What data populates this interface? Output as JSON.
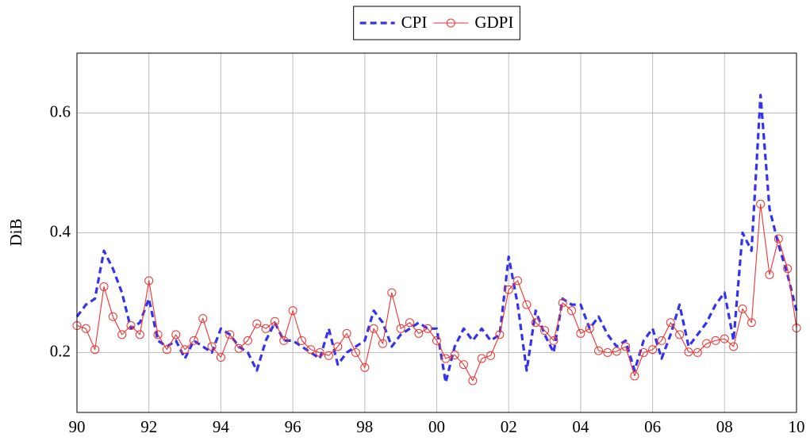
{
  "chart_data": {
    "type": "line",
    "ylabel": "DiB",
    "x": [
      1990,
      1990.25,
      1990.5,
      1990.75,
      1991,
      1991.25,
      1991.5,
      1991.75,
      1992,
      1992.25,
      1992.5,
      1992.75,
      1993,
      1993.25,
      1993.5,
      1993.75,
      1994,
      1994.25,
      1994.5,
      1994.75,
      1995,
      1995.25,
      1995.5,
      1995.75,
      1996,
      1996.25,
      1996.5,
      1996.75,
      1997,
      1997.25,
      1997.5,
      1997.75,
      1998,
      1998.25,
      1998.5,
      1998.75,
      1999,
      1999.25,
      1999.5,
      1999.75,
      2000,
      2000.25,
      2000.5,
      2000.75,
      2001,
      2001.25,
      2001.5,
      2001.75,
      2002,
      2002.25,
      2002.5,
      2002.75,
      2003,
      2003.25,
      2003.5,
      2003.75,
      2004,
      2004.25,
      2004.5,
      2004.75,
      2005,
      2005.25,
      2005.5,
      2005.75,
      2006,
      2006.25,
      2006.5,
      2006.75,
      2007,
      2007.25,
      2007.5,
      2007.75,
      2008,
      2008.25,
      2008.5,
      2008.75,
      2009,
      2009.25,
      2009.5,
      2009.75,
      2010
    ],
    "series": [
      {
        "name": "CPI",
        "color": "#3333ee",
        "dashed": true,
        "marker": false,
        "values": [
          0.26,
          0.28,
          0.29,
          0.37,
          0.34,
          0.3,
          0.24,
          0.25,
          0.29,
          0.22,
          0.21,
          0.22,
          0.19,
          0.22,
          0.21,
          0.2,
          0.24,
          0.23,
          0.21,
          0.2,
          0.17,
          0.22,
          0.25,
          0.22,
          0.22,
          0.21,
          0.2,
          0.19,
          0.24,
          0.18,
          0.2,
          0.21,
          0.22,
          0.27,
          0.25,
          0.21,
          0.23,
          0.24,
          0.25,
          0.24,
          0.24,
          0.15,
          0.21,
          0.24,
          0.22,
          0.24,
          0.22,
          0.23,
          0.36,
          0.28,
          0.17,
          0.27,
          0.23,
          0.2,
          0.29,
          0.28,
          0.28,
          0.24,
          0.26,
          0.23,
          0.21,
          0.22,
          0.17,
          0.22,
          0.24,
          0.19,
          0.23,
          0.28,
          0.21,
          0.23,
          0.25,
          0.28,
          0.3,
          0.22,
          0.4,
          0.37,
          0.63,
          0.44,
          0.38,
          0.33,
          0.27
        ]
      },
      {
        "name": "GDPI",
        "color": "#ee3333",
        "dashed": false,
        "marker": true,
        "values": [
          0.245,
          0.24,
          0.205,
          0.31,
          0.26,
          0.23,
          0.245,
          0.23,
          0.32,
          0.23,
          0.205,
          0.23,
          0.205,
          0.22,
          0.257,
          0.21,
          0.192,
          0.23,
          0.207,
          0.22,
          0.248,
          0.24,
          0.252,
          0.22,
          0.27,
          0.22,
          0.205,
          0.2,
          0.195,
          0.21,
          0.232,
          0.2,
          0.175,
          0.24,
          0.215,
          0.3,
          0.24,
          0.25,
          0.232,
          0.24,
          0.22,
          0.19,
          0.196,
          0.18,
          0.153,
          0.19,
          0.195,
          0.23,
          0.305,
          0.32,
          0.28,
          0.25,
          0.237,
          0.22,
          0.283,
          0.27,
          0.232,
          0.24,
          0.203,
          0.2,
          0.202,
          0.21,
          0.161,
          0.2,
          0.205,
          0.22,
          0.25,
          0.23,
          0.201,
          0.2,
          0.215,
          0.22,
          0.223,
          0.21,
          0.273,
          0.25,
          0.448,
          0.33,
          0.39,
          0.34,
          0.241
        ]
      }
    ],
    "xlim": [
      1990,
      2010
    ],
    "xticks": [
      {
        "value": 1990,
        "label": "90"
      },
      {
        "value": 1992,
        "label": "92"
      },
      {
        "value": 1994,
        "label": "94"
      },
      {
        "value": 1996,
        "label": "96"
      },
      {
        "value": 1998,
        "label": "98"
      },
      {
        "value": 2000,
        "label": "00"
      },
      {
        "value": 2002,
        "label": "02"
      },
      {
        "value": 2004,
        "label": "04"
      },
      {
        "value": 2006,
        "label": "06"
      },
      {
        "value": 2008,
        "label": "08"
      },
      {
        "value": 2010,
        "label": "10"
      }
    ],
    "ylim": [
      0.1,
      0.7
    ],
    "yticks": [
      0.2,
      0.4,
      0.6
    ],
    "grid": true,
    "legend": "top"
  }
}
